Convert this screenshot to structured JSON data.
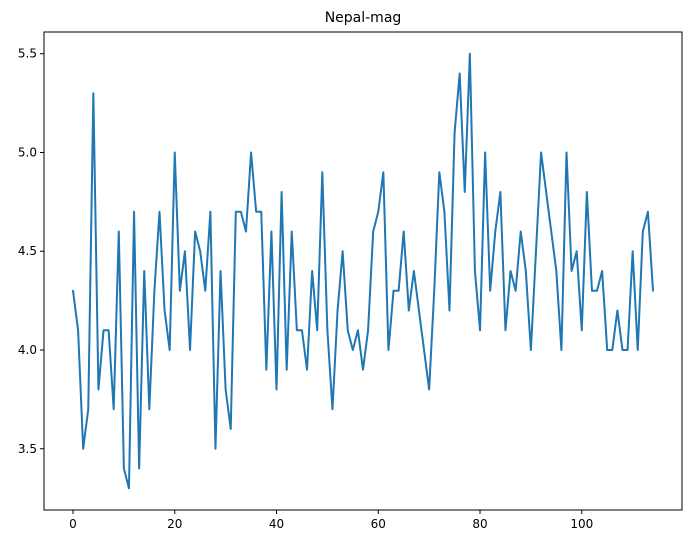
{
  "chart_data": {
    "type": "line",
    "title": "Nepal-mag",
    "xlabel": "",
    "ylabel": "",
    "xlim": [
      -5.7,
      119.7
    ],
    "ylim": [
      3.19,
      5.61
    ],
    "xticks": [
      0,
      20,
      40,
      60,
      80,
      100
    ],
    "yticks": [
      3.5,
      4.0,
      4.5,
      5.0,
      5.5
    ],
    "ytick_labels": [
      "3.5",
      "4.0",
      "4.5",
      "5.0",
      "5.5"
    ],
    "grid": false,
    "legend": "none",
    "series": [
      {
        "color": "#1f77b4",
        "values": [
          4.3,
          4.1,
          3.5,
          3.7,
          5.3,
          3.8,
          4.1,
          4.1,
          3.7,
          4.6,
          3.4,
          3.3,
          4.7,
          3.4,
          4.4,
          3.7,
          4.3,
          4.7,
          4.2,
          4.0,
          5.0,
          4.3,
          4.5,
          4.0,
          4.6,
          4.5,
          4.3,
          4.7,
          3.5,
          4.4,
          3.8,
          3.6,
          4.7,
          4.7,
          4.6,
          5.0,
          4.7,
          4.7,
          3.9,
          4.6,
          3.8,
          4.8,
          3.9,
          4.6,
          4.1,
          4.1,
          3.9,
          4.4,
          4.1,
          4.9,
          4.1,
          3.7,
          4.2,
          4.5,
          4.1,
          4.0,
          4.1,
          3.9,
          4.1,
          4.6,
          4.7,
          4.9,
          4.0,
          4.3,
          4.3,
          4.6,
          4.2,
          4.4,
          4.2,
          4.0,
          3.8,
          4.3,
          4.9,
          4.7,
          4.2,
          5.1,
          5.4,
          4.8,
          5.5,
          4.4,
          4.1,
          5.0,
          4.3,
          4.6,
          4.8,
          4.1,
          4.4,
          4.3,
          4.6,
          4.4,
          4.0,
          4.5,
          5.0,
          4.8,
          4.6,
          4.4,
          4.0,
          5.0,
          4.4,
          4.5,
          4.1,
          4.8,
          4.3,
          4.3,
          4.4,
          4.0,
          4.0,
          4.2,
          4.0,
          4.0,
          4.5,
          4.0,
          4.6,
          4.7,
          4.3
        ]
      }
    ]
  }
}
